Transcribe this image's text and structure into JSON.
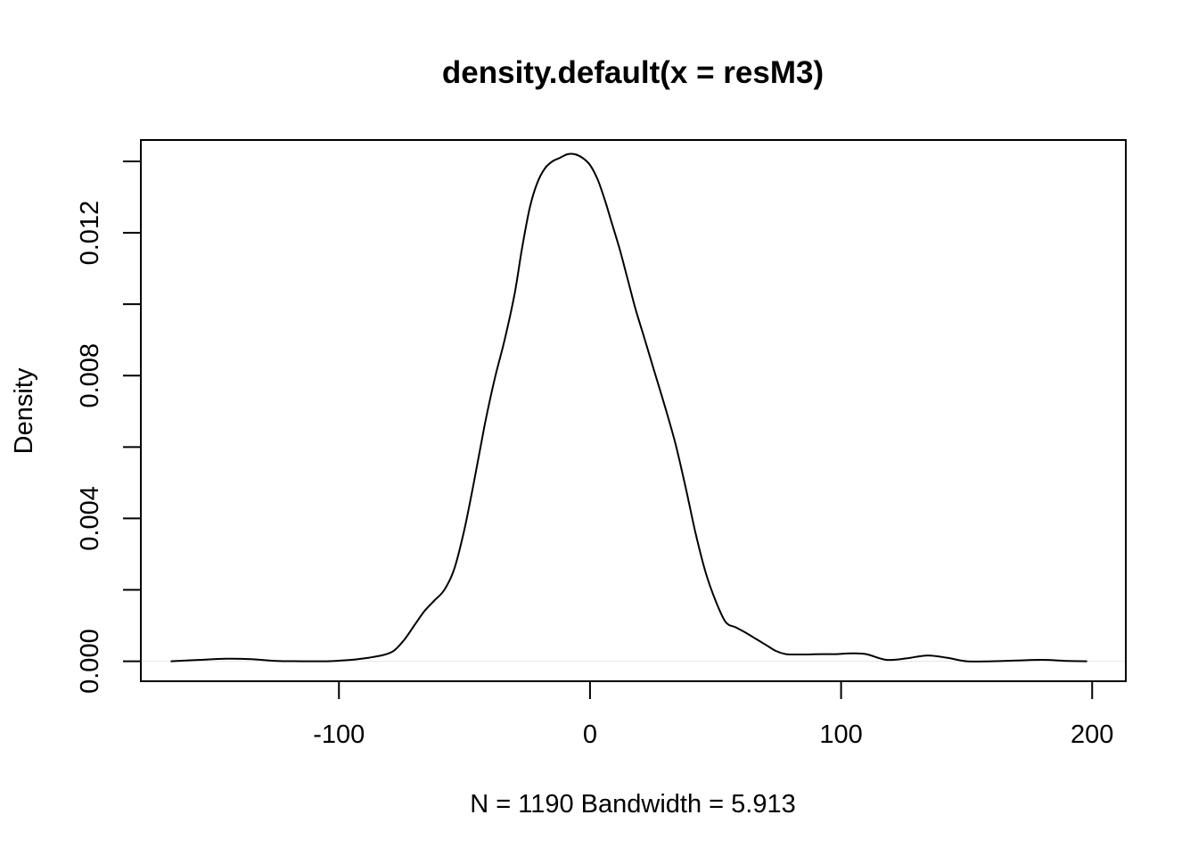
{
  "chart_data": {
    "type": "line",
    "title": "density.default(x = resM3)",
    "xlabel": "N = 1190   Bandwidth = 5.913",
    "ylabel": "Density",
    "xlim": [
      -178.9,
      213.4
    ],
    "ylim": [
      -0.00056,
      0.0146
    ],
    "x_ticks": [
      -100,
      0,
      100,
      200
    ],
    "x_tick_labels": [
      "-100",
      "0",
      "100",
      "200"
    ],
    "y_ticks": [
      0.0,
      0.002,
      0.004,
      0.006,
      0.008,
      0.01,
      0.012,
      0.014
    ],
    "y_tick_labels": [
      "0.000",
      "",
      "0.004",
      "",
      "0.008",
      "",
      "0.012",
      ""
    ],
    "grid": false,
    "legend": "none",
    "zero_line": true,
    "colors": {
      "line": "#000000",
      "zero_line": "#e6e6e6"
    },
    "series": [
      {
        "x": [
          -167,
          -155,
          -145,
          -135,
          -125,
          -115,
          -105,
          -95,
          -88,
          -82,
          -78,
          -74,
          -70,
          -66,
          -62,
          -58,
          -54,
          -50,
          -46,
          -42,
          -38,
          -34,
          -30,
          -27,
          -24,
          -21,
          -18,
          -15,
          -12,
          -9,
          -6,
          -3,
          0,
          3,
          6,
          9,
          12,
          15,
          18,
          21,
          24,
          27,
          30,
          34,
          38,
          42,
          46,
          50,
          54,
          58,
          62,
          66,
          70,
          74,
          78,
          82,
          86,
          92,
          98,
          104,
          110,
          118,
          126,
          134,
          142,
          150,
          160,
          170,
          180,
          190,
          198
        ],
        "y": [
          0.0,
          4e-05,
          7e-05,
          6e-05,
          1e-05,
          0.0,
          0.0,
          4e-05,
          0.0001,
          0.00018,
          0.0003,
          0.0006,
          0.001,
          0.0014,
          0.0017,
          0.002,
          0.0026,
          0.0037,
          0.0051,
          0.0066,
          0.0079,
          0.009,
          0.0103,
          0.0116,
          0.0127,
          0.0134,
          0.0138,
          0.014,
          0.0141,
          0.0142,
          0.0142,
          0.0141,
          0.0139,
          0.0135,
          0.0129,
          0.0122,
          0.0115,
          0.0107,
          0.0099,
          0.0092,
          0.0085,
          0.0078,
          0.0071,
          0.0061,
          0.0049,
          0.0036,
          0.0025,
          0.0017,
          0.0011,
          0.00095,
          0.0008,
          0.00063,
          0.00046,
          0.00029,
          0.0002,
          0.00019,
          0.00019,
          0.0002,
          0.0002,
          0.00022,
          0.0002,
          4e-05,
          8e-05,
          0.00016,
          0.0001,
          0.0,
          0.0,
          2e-05,
          4e-05,
          1e-05,
          0.0
        ]
      }
    ]
  }
}
